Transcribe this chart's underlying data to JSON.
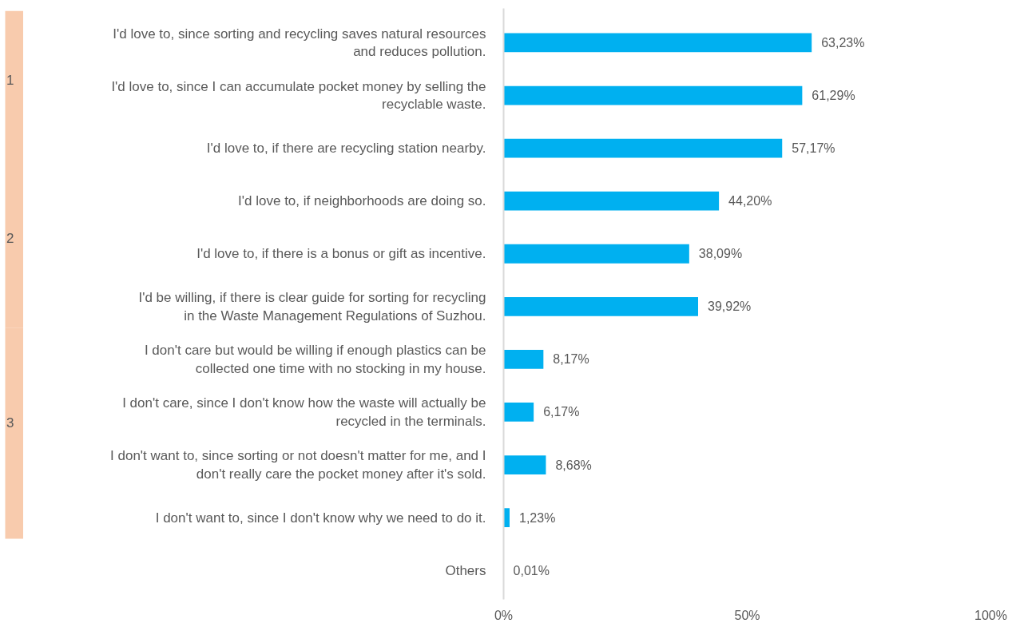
{
  "chart_data": {
    "type": "bar",
    "orientation": "horizontal",
    "categories": [
      "I'd love to, since sorting and recycling saves natural resources and reduces pollution.",
      "I'd love to, since I can accumulate pocket money by selling the recyclable waste.",
      "I'd love to, if there are recycling station nearby.",
      "I'd love to, if neighborhoods are doing so.",
      "I'd love to, if there is a bonus or gift as incentive.",
      "I'd be willing, if there is clear guide for sorting for recycling in the Waste Management Regulations of Suzhou.",
      "I don't care but would be willing if enough plastics can be collected one time with no stocking in my house.",
      "I don't care, since I don't know how the waste will actually be recycled in the terminals.",
      "I don't want to, since sorting or not doesn't matter for me, and I don't really care the pocket money after it's sold.",
      "I don't want to, since I don't know why we need to do it.",
      "Others"
    ],
    "values": [
      63.23,
      61.29,
      57.17,
      44.2,
      38.09,
      39.92,
      8.17,
      6.17,
      8.68,
      1.23,
      0.01
    ],
    "value_labels": [
      "63,23%",
      "61,29%",
      "57,17%",
      "44,20%",
      "38,09%",
      "39,92%",
      "8,17%",
      "6,17%",
      "8,68%",
      "1,23%",
      "0,01%"
    ],
    "color": "#00b0f0",
    "xlim": [
      0,
      100
    ],
    "xticks": [
      {
        "value": 0,
        "label": "0%"
      },
      {
        "value": 50,
        "label": "50%"
      },
      {
        "value": 100,
        "label": "100%"
      }
    ],
    "grid": false,
    "annotations": [
      "1",
      "2",
      "3"
    ]
  }
}
